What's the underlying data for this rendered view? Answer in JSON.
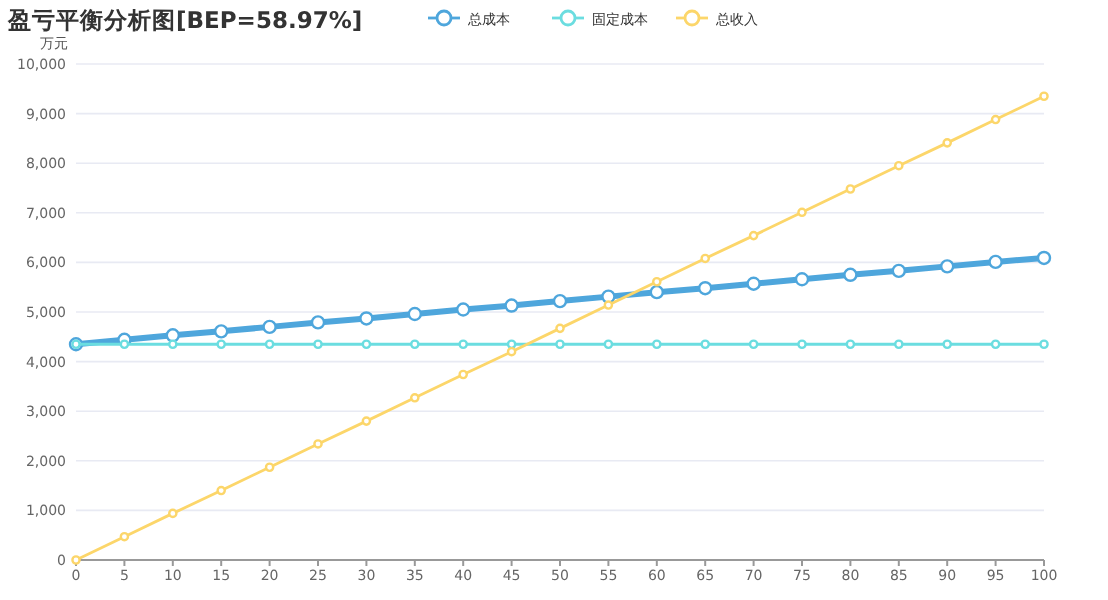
{
  "chart_data": {
    "type": "line",
    "title": "盈亏平衡分析图[BEP=58.97%]",
    "ylabel": "万元",
    "categories": [
      "0",
      "5",
      "10",
      "15",
      "20",
      "25",
      "30",
      "35",
      "40",
      "45",
      "50",
      "55",
      "60",
      "65",
      "70",
      "75",
      "80",
      "85",
      "90",
      "95",
      "100"
    ],
    "series": [
      {
        "name": "总成本",
        "color": "#4ea6dc",
        "values": [
          4350,
          4440,
          4530,
          4610,
          4700,
          4790,
          4870,
          4960,
          5050,
          5130,
          5220,
          5310,
          5400,
          5480,
          5570,
          5660,
          5750,
          5830,
          5920,
          6010,
          6090
        ]
      },
      {
        "name": "固定成本",
        "color": "#6bdde0",
        "values": [
          4350,
          4350,
          4350,
          4350,
          4350,
          4350,
          4350,
          4350,
          4350,
          4350,
          4350,
          4350,
          4350,
          4350,
          4350,
          4350,
          4350,
          4350,
          4350,
          4350,
          4350
        ]
      },
      {
        "name": "总收入",
        "color": "#fcd66a",
        "values": [
          0,
          470,
          940,
          1400,
          1870,
          2340,
          2800,
          3270,
          3740,
          4200,
          4670,
          5140,
          5610,
          6080,
          6540,
          7010,
          7480,
          7950,
          8410,
          8880,
          9350
        ]
      }
    ],
    "ylim": [
      0,
      10000
    ],
    "yticks": [
      0,
      {
        "value": 1000,
        "label": "1,000"
      },
      {
        "value": 2000,
        "label": "2,000"
      },
      {
        "value": 3000,
        "label": "3,000"
      },
      {
        "value": 4000,
        "label": "4,000"
      },
      {
        "value": 5000,
        "label": "5,000"
      },
      {
        "value": 6000,
        "label": "6,000"
      },
      {
        "value": 7000,
        "label": "7,000"
      },
      {
        "value": 8000,
        "label": "8,000"
      },
      {
        "value": 9000,
        "label": "9,000"
      },
      {
        "value": 10000,
        "label": "10,000"
      }
    ],
    "grid": "y",
    "legend": "top",
    "marker": "circle",
    "line_style": "solid"
  }
}
